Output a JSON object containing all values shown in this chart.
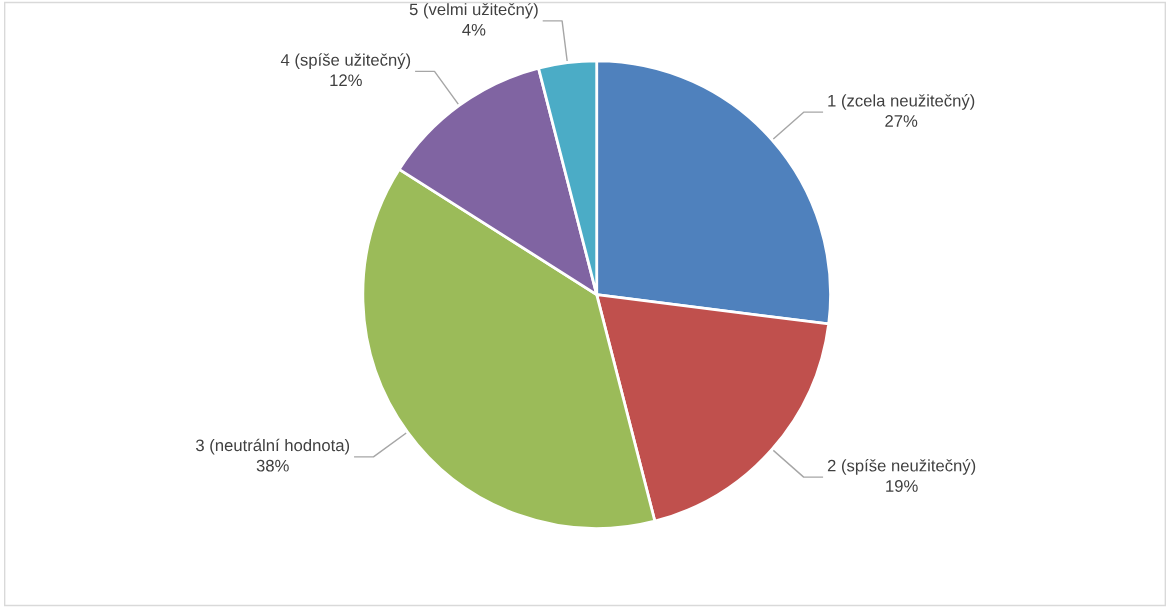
{
  "chart_data": {
    "type": "pie",
    "categories": [
      "1 (zcela neužitečný)",
      "2 (spíše neužitečný)",
      "3 (neutrální hodnota)",
      "4 (spíše užitečný)",
      "5 (velmi užitečný)"
    ],
    "values": [
      27,
      19,
      38,
      12,
      4
    ],
    "value_labels": [
      "27%",
      "19%",
      "38%",
      "12%",
      "4%"
    ],
    "colors": [
      "#4f81bd",
      "#c0504d",
      "#9bbb59",
      "#8064a2",
      "#4bacc6"
    ],
    "legend": false
  }
}
